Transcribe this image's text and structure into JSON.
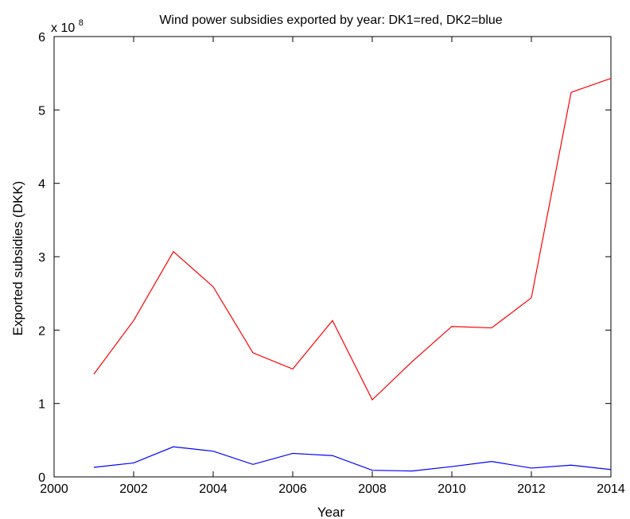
{
  "chart_data": {
    "type": "line",
    "title": "Wind power subsidies exported by year: DK1=red, DK2=blue",
    "xlabel": "Year",
    "ylabel": "Exported subsidies (DKK)",
    "y_exponent_label": "x 10",
    "y_exponent_power": "8",
    "xlim": [
      2000,
      2014
    ],
    "ylim": [
      0,
      6
    ],
    "x_ticks": [
      "2000",
      "2002",
      "2004",
      "2006",
      "2008",
      "2010",
      "2012",
      "2014"
    ],
    "y_ticks": [
      "0",
      "1",
      "2",
      "3",
      "4",
      "5",
      "6"
    ],
    "grid": false,
    "x": [
      2001,
      2002,
      2003,
      2004,
      2005,
      2006,
      2007,
      2008,
      2009,
      2010,
      2011,
      2012,
      2013,
      2014
    ],
    "series": [
      {
        "color": "#ff0000",
        "values": [
          1.4,
          2.13,
          3.07,
          2.59,
          1.69,
          1.47,
          2.13,
          1.05,
          1.57,
          2.05,
          2.03,
          2.44,
          5.24,
          5.43
        ]
      },
      {
        "color": "#0000ff",
        "values": [
          0.13,
          0.19,
          0.41,
          0.35,
          0.17,
          0.32,
          0.29,
          0.09,
          0.08,
          0.14,
          0.21,
          0.12,
          0.16,
          0.1
        ]
      }
    ]
  }
}
